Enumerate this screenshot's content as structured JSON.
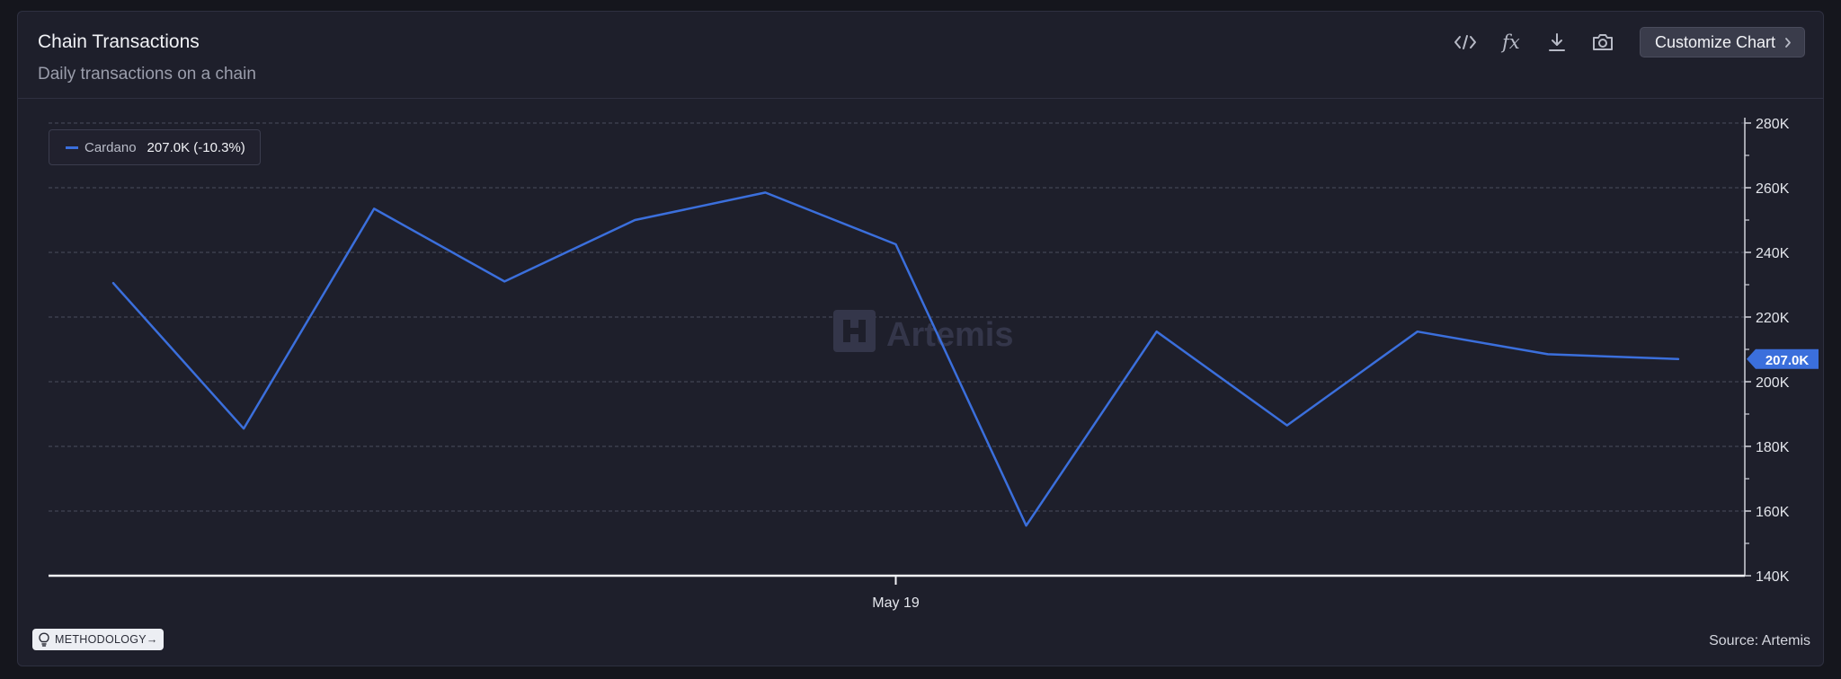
{
  "header": {
    "title": "Chain Transactions",
    "subtitle": "Daily transactions on a chain",
    "customize_label": "Customize Chart"
  },
  "toolbar": {
    "icons": [
      "embed-code-icon",
      "fx-formula-icon",
      "download-icon",
      "camera-icon"
    ],
    "fx_glyph": "fx"
  },
  "legend": {
    "series_name": "Cardano",
    "series_value": "207.0K (-10.3%)"
  },
  "chart_data": {
    "type": "line",
    "x": [
      "",
      "",
      "",
      "",
      "",
      "",
      "May 19",
      "",
      "",
      "",
      "",
      "",
      ""
    ],
    "x_tick_labels": [
      {
        "index": 6,
        "label": "May 19"
      }
    ],
    "series": [
      {
        "name": "Cardano",
        "color": "#3b6fdc",
        "values": [
          230.5,
          185.5,
          253.5,
          231.0,
          250.0,
          258.5,
          242.5,
          155.5,
          215.5,
          186.5,
          215.5,
          208.5,
          207.0
        ]
      }
    ],
    "y_ticks": [
      "140K",
      "160K",
      "180K",
      "200K",
      "220K",
      "240K",
      "260K",
      "280K"
    ],
    "ylim": [
      140,
      280
    ],
    "y_unit": "K",
    "y_axis_side": "right",
    "last_value_label": "207.0K",
    "grid": true,
    "watermark": "Artemis"
  },
  "footer": {
    "methodology_label": "METHODOLOGY",
    "methodology_arrow": "→",
    "source": "Source: Artemis"
  },
  "colors": {
    "background": "#1e1f2b",
    "line": "#3b6fdc",
    "grid": "#4a4c5c"
  }
}
